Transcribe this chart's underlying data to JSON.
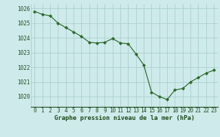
{
  "x": [
    0,
    1,
    2,
    3,
    4,
    5,
    6,
    7,
    8,
    9,
    10,
    11,
    12,
    13,
    14,
    15,
    16,
    17,
    18,
    19,
    20,
    21,
    22,
    23
  ],
  "y": [
    1025.8,
    1025.6,
    1025.5,
    1025.0,
    1024.7,
    1024.4,
    1024.1,
    1023.7,
    1023.65,
    1023.7,
    1023.95,
    1023.65,
    1023.6,
    1022.9,
    1022.15,
    1020.3,
    1020.0,
    1019.8,
    1020.45,
    1020.55,
    1021.0,
    1021.3,
    1021.6,
    1021.8
  ],
  "line_color": "#2d6a2d",
  "marker": "D",
  "marker_size": 2.2,
  "bg_color": "#ceeaea",
  "grid_color": "#aacece",
  "title": "Graphe pression niveau de la mer (hPa)",
  "label_color": "#1a4a1a",
  "ylim": [
    1019.3,
    1026.3
  ],
  "yticks": [
    1020,
    1021,
    1022,
    1023,
    1024,
    1025,
    1026
  ],
  "xticks": [
    0,
    1,
    2,
    3,
    4,
    5,
    6,
    7,
    8,
    9,
    10,
    11,
    12,
    13,
    14,
    15,
    16,
    17,
    18,
    19,
    20,
    21,
    22,
    23
  ],
  "title_fontsize": 6.5,
  "tick_fontsize": 5.5,
  "title_fontweight": "bold",
  "linewidth": 0.9
}
